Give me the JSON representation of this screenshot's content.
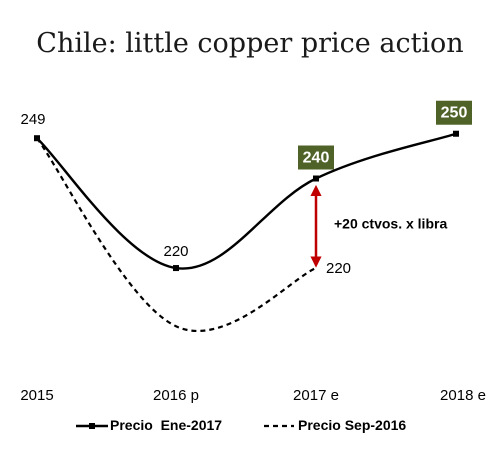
{
  "chart_data": {
    "type": "line",
    "title": "Chile: little copper price action",
    "categories": [
      "2015",
      "2016 p",
      "2017 e",
      "2018 e"
    ],
    "series": [
      {
        "name": "Precio  Ene-2017",
        "style": "solid",
        "values": [
          249,
          220,
          240,
          250
        ],
        "point_labels": [
          "249",
          "220",
          "240",
          "250"
        ],
        "highlighted_labels": [
          "240",
          "250"
        ]
      },
      {
        "name": "Precio Sep-2016",
        "style": "dashed",
        "values": [
          249,
          207,
          220,
          null
        ],
        "point_labels": [
          "",
          "",
          "220",
          ""
        ]
      }
    ],
    "annotation": "+20 ctvos. x libra",
    "ylim": [
      195,
      262
    ],
    "grid": false,
    "legend_position": "bottom",
    "colors": {
      "line": "#000000",
      "label_box": "#4f6228",
      "label_box_text": "#ffffff",
      "arrow": "#c00000",
      "text": "#000000"
    }
  }
}
